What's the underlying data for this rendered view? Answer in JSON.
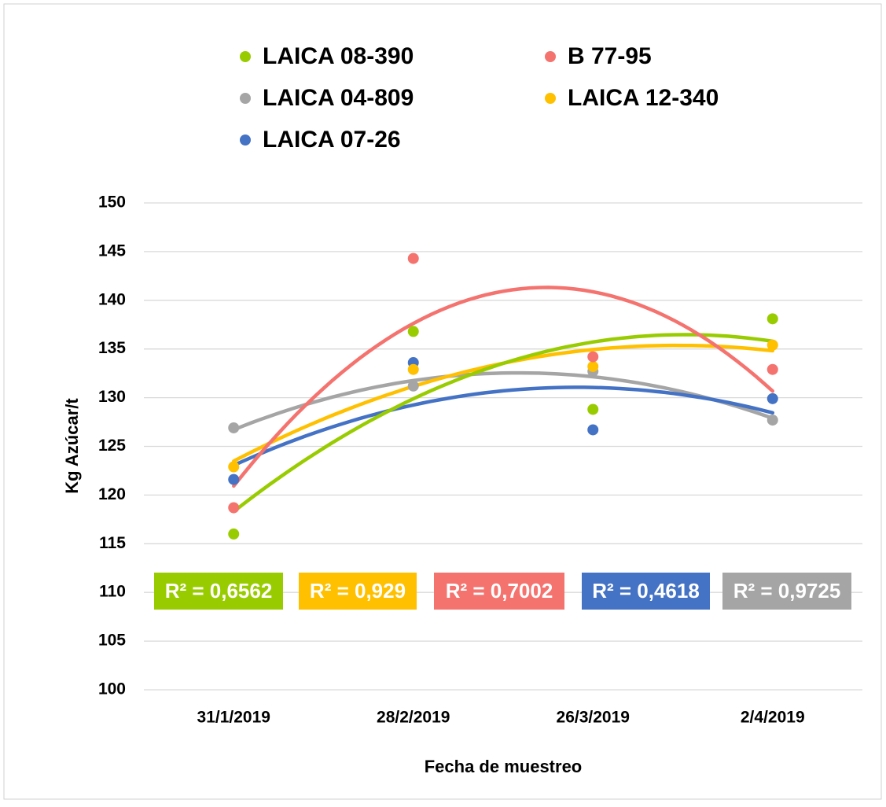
{
  "chart_data": {
    "type": "scatter",
    "x_label": "Fecha de muestreo",
    "y_label": "Kg Azúcar/t",
    "categories": [
      "31/1/2019",
      "28/2/2019",
      "26/3/2019",
      "2/4/2019"
    ],
    "series": [
      {
        "name": "LAICA 08-390",
        "color": "#99cc00",
        "values": [
          116.0,
          136.8,
          128.8,
          138.1
        ]
      },
      {
        "name": "B 77-95",
        "color": "#f4736f",
        "values": [
          118.7,
          144.3,
          134.2,
          132.9
        ]
      },
      {
        "name": "LAICA 04-809",
        "color": "#a5a5a5",
        "values": [
          126.9,
          131.2,
          132.7,
          127.7
        ]
      },
      {
        "name": "LAICA 12-340",
        "color": "#ffc000",
        "values": [
          122.9,
          132.9,
          133.2,
          135.4
        ]
      },
      {
        "name": "LAICA 07-26",
        "color": "#4472c4",
        "values": [
          121.6,
          133.6,
          126.7,
          129.9
        ]
      }
    ],
    "trendline": "polynomial",
    "annotations": [
      {
        "text": "R² = 0,6562",
        "color": "#99cc00"
      },
      {
        "text": "R² = 0,929",
        "color": "#ffc000"
      },
      {
        "text": "R² = 0,7002",
        "color": "#f4736f"
      },
      {
        "text": "R² = 0,4618",
        "color": "#4472c4"
      },
      {
        "text": "R² = 0,9725",
        "color": "#a5a5a5"
      }
    ],
    "ylim": [
      100,
      150
    ],
    "yticks": [
      100,
      105,
      110,
      115,
      120,
      125,
      130,
      135,
      140,
      145,
      150
    ],
    "grid": true
  }
}
